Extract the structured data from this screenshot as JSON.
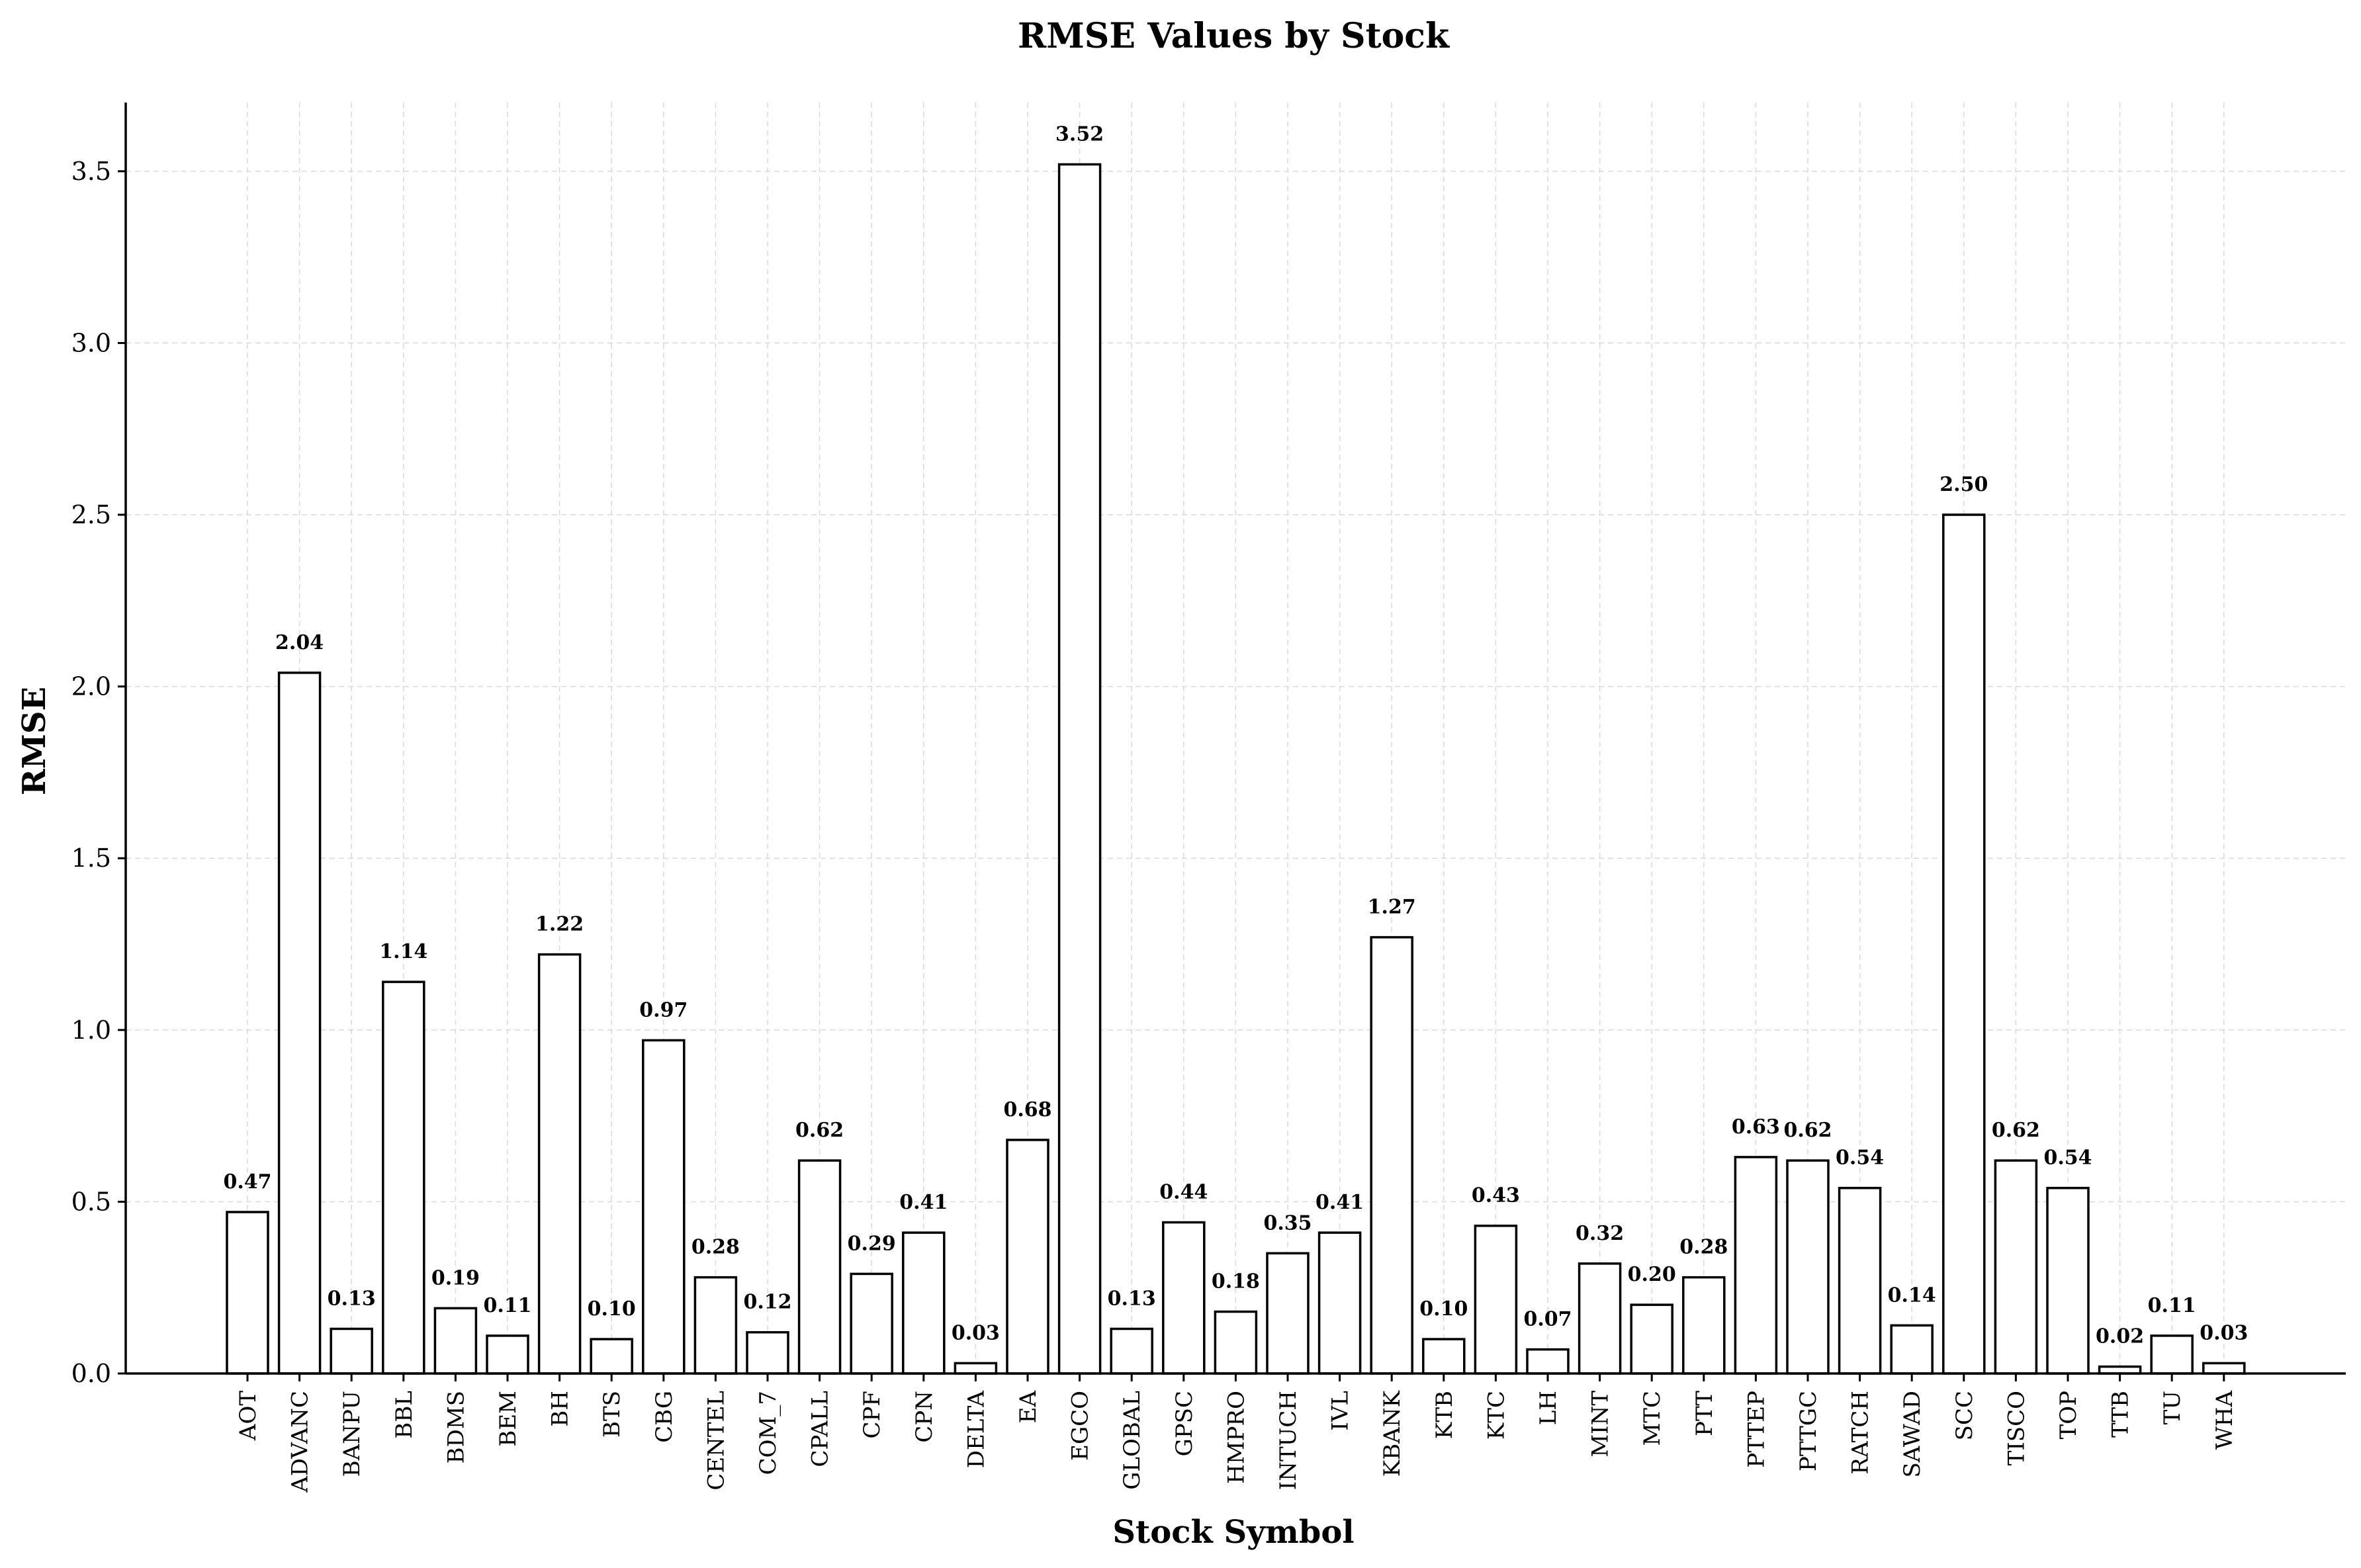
{
  "chart_data": {
    "type": "bar",
    "title": "RMSE Values by Stock",
    "xlabel": "Stock Symbol",
    "ylabel": "RMSE",
    "ylim": [
      0,
      3.7
    ],
    "yticks": [
      "0.0",
      "0.5",
      "1.0",
      "1.5",
      "2.0",
      "2.5",
      "3.0",
      "3.5"
    ],
    "grid": true,
    "categories": [
      "AOT",
      "ADVANC",
      "BANPU",
      "BBL",
      "BDMS",
      "BEM",
      "BH",
      "BTS",
      "CBG",
      "CENTEL",
      "COM_7",
      "CPALL",
      "CPF",
      "CPN",
      "DELTA",
      "EA",
      "EGCO",
      "GLOBAL",
      "GPSC",
      "HMPRO",
      "INTUCH",
      "IVL",
      "KBANK",
      "KTB",
      "KTC",
      "LH",
      "MINT",
      "MTC",
      "PTT",
      "PTTEP",
      "PTTGC",
      "RATCH",
      "SAWAD",
      "SCC",
      "TISCO",
      "TOP",
      "TTB",
      "TU",
      "WHA"
    ],
    "values": [
      0.47,
      2.04,
      0.13,
      1.14,
      0.19,
      0.11,
      1.22,
      0.1,
      0.97,
      0.28,
      0.12,
      0.62,
      0.29,
      0.41,
      0.03,
      0.68,
      3.52,
      0.13,
      0.44,
      0.18,
      0.35,
      0.41,
      1.27,
      0.1,
      0.43,
      0.07,
      0.32,
      0.2,
      0.28,
      0.63,
      0.62,
      0.54,
      0.14,
      2.5,
      0.62,
      0.54,
      0.02,
      0.11,
      0.03
    ],
    "value_labels": [
      "0.47",
      "2.04",
      "0.13",
      "1.14",
      "0.19",
      "0.11",
      "1.22",
      "0.10",
      "0.97",
      "0.28",
      "0.12",
      "0.62",
      "0.29",
      "0.41",
      "0.03",
      "0.68",
      "3.52",
      "0.13",
      "0.44",
      "0.18",
      "0.35",
      "0.41",
      "1.27",
      "0.10",
      "0.43",
      "0.07",
      "0.32",
      "0.20",
      "0.28",
      "0.63",
      "0.62",
      "0.54",
      "0.14",
      "2.50",
      "0.62",
      "0.54",
      "0.02",
      "0.11",
      "0.03"
    ],
    "colors": {
      "bar_fill": "#ffffff",
      "bar_edge": "#000000",
      "grid": "#d9d9d9"
    }
  }
}
